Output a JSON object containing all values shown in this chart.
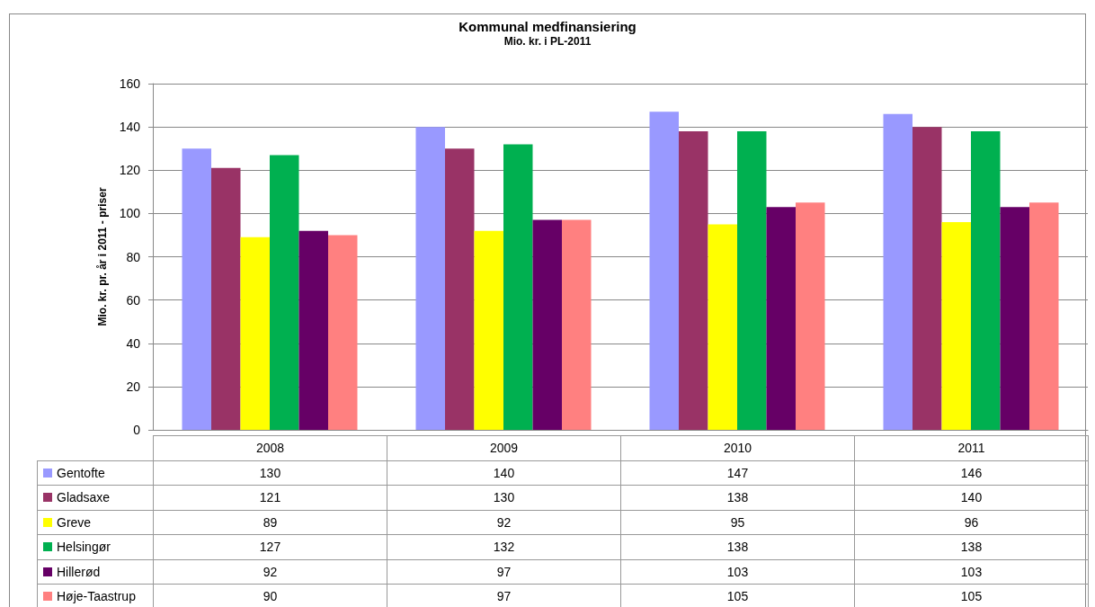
{
  "chart_data": {
    "type": "bar",
    "title": "Kommunal medfinansiering",
    "subtitle": "Mio. kr. i PL-2011",
    "ylabel": "Mio. kr. pr. år i 2011 - priser",
    "categories": [
      "2008",
      "2009",
      "2010",
      "2011"
    ],
    "series": [
      {
        "name": "Gentofte",
        "color": "#9999ff",
        "values": [
          130,
          140,
          147,
          146
        ]
      },
      {
        "name": "Gladsaxe",
        "color": "#993366",
        "values": [
          121,
          130,
          138,
          140
        ]
      },
      {
        "name": "Greve",
        "color": "#ffff00",
        "values": [
          89,
          92,
          95,
          96
        ]
      },
      {
        "name": "Helsingør",
        "color": "#00b050",
        "values": [
          127,
          132,
          138,
          138
        ]
      },
      {
        "name": "Hillerød",
        "color": "#660066",
        "values": [
          92,
          97,
          103,
          103
        ]
      },
      {
        "name": "Høje-Taastrup",
        "color": "#ff8080",
        "values": [
          90,
          97,
          105,
          105
        ]
      }
    ],
    "ylim": [
      0,
      160
    ],
    "yticks": [
      0,
      20,
      40,
      60,
      80,
      100,
      120,
      140,
      160
    ],
    "grid": "y",
    "legend": "bottom",
    "data_labels": true
  }
}
